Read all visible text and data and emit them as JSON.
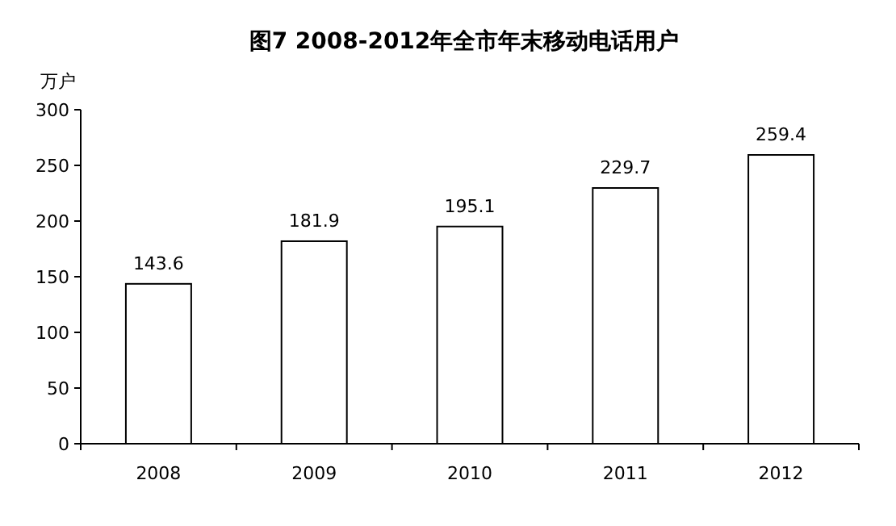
{
  "chart_data": {
    "type": "bar",
    "title": "图7  2008-2012年全市年末移动电话用户",
    "ylabel": "万户",
    "categories": [
      "2008",
      "2009",
      "2010",
      "2011",
      "2012"
    ],
    "values": [
      143.6,
      181.9,
      195.1,
      229.7,
      259.4
    ],
    "color": "#ffffff",
    "ylim": [
      0,
      300
    ],
    "yticks": [
      0,
      50,
      100,
      150,
      200,
      250,
      300
    ],
    "data_labels": true
  }
}
